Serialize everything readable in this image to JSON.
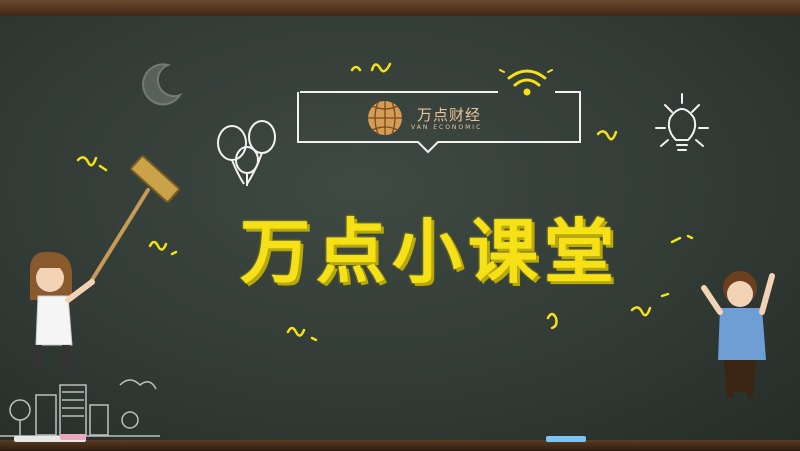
{
  "logo": {
    "name": "万点财经",
    "subtitle": "VAN ECONOMIC"
  },
  "title": "万点小课堂",
  "colors": {
    "board": "#323b35",
    "title": "#f6e116",
    "chalk_line": "#ffffff",
    "logo_text": "#e9c49b",
    "frame": "#5a3c23"
  },
  "icons": [
    "moon-icon",
    "wifi-icon",
    "lightbulb-icon",
    "balloon-icon",
    "mop-icon",
    "globe-logo-icon"
  ]
}
